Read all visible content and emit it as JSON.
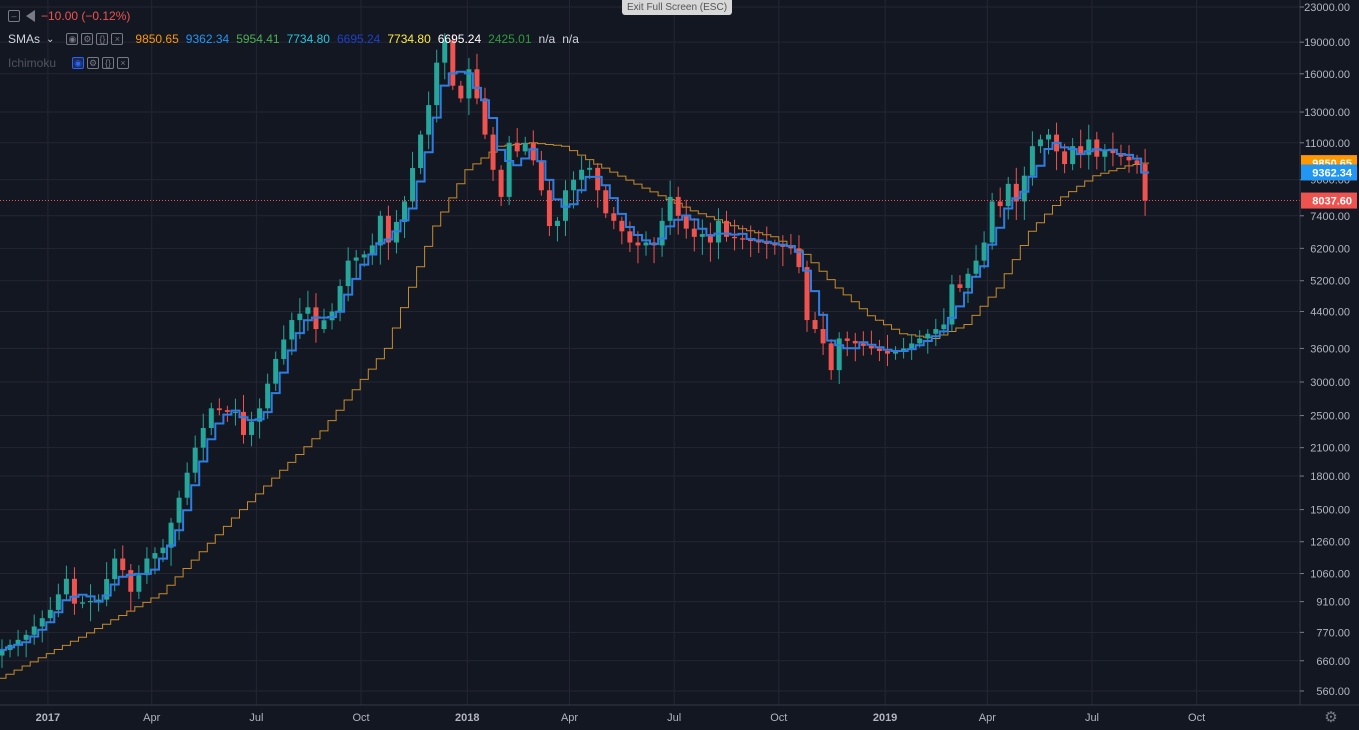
{
  "header": {
    "change_text": "−10.00 (−0.12%)",
    "exit_fullscreen_label": "Exit Full Screen (ESC)"
  },
  "legend": {
    "smas_label": "SMAs",
    "smas_values": [
      {
        "text": "9850.65",
        "color": "#ff9800"
      },
      {
        "text": "9362.34",
        "color": "#2196f3"
      },
      {
        "text": "5954.41",
        "color": "#4caf50"
      },
      {
        "text": "7734.80",
        "color": "#26c6da"
      },
      {
        "text": "6695.24",
        "color": "#1e40c8"
      },
      {
        "text": "7734.80",
        "color": "#ffeb3b"
      },
      {
        "text": "6695.24",
        "color": "#ffffff"
      },
      {
        "text": "2425.01",
        "color": "#2e9d3a"
      },
      {
        "text": "n/a",
        "color": "#d1d4dc"
      },
      {
        "text": "n/a",
        "color": "#d1d4dc"
      }
    ],
    "ichimoku_label": "Ichimoku"
  },
  "chart_data": {
    "type": "candlestick",
    "interval": "weekly",
    "scale": "log",
    "grid": true,
    "x_tick_labels": [
      "2017",
      "Apr",
      "Jul",
      "Oct",
      "2018",
      "Apr",
      "Jul",
      "Oct",
      "2019",
      "Apr",
      "Jul",
      "Oct"
    ],
    "y_tick_labels": [
      "23000.00",
      "19000.00",
      "16000.00",
      "13000.00",
      "11000.00",
      "9000.00",
      "7400.00",
      "6200.00",
      "5200.00",
      "4400.00",
      "3600.00",
      "3000.00",
      "2500.00",
      "2100.00",
      "1800.00",
      "1500.00",
      "1260.00",
      "1060.00",
      "910.00",
      "770.00",
      "660.00",
      "560.00"
    ],
    "ylim": [
      530,
      23500
    ],
    "price_badges": [
      {
        "text": "9850.65",
        "value": 9850.65,
        "color": "#ff9800"
      },
      {
        "text": "9362.34",
        "value": 9362.34,
        "color": "#2196f3"
      },
      {
        "text": "8037.60",
        "value": 8037.6,
        "color": "#ef5350"
      }
    ],
    "current_price_line": 8037.6,
    "colors": {
      "up": "#26a69a",
      "down": "#ef5350",
      "sma_fast": "#2f7de1",
      "sma_slow": "#c58b2b"
    },
    "close_path": [
      [
        0,
        700
      ],
      [
        3,
        760
      ],
      [
        6,
        870
      ],
      [
        8,
        1030
      ],
      [
        9,
        900
      ],
      [
        12,
        920
      ],
      [
        14,
        1150
      ],
      [
        15,
        1080
      ],
      [
        16,
        960
      ],
      [
        18,
        1150
      ],
      [
        20,
        1220
      ],
      [
        22,
        1600
      ],
      [
        24,
        2100
      ],
      [
        26,
        2600
      ],
      [
        28,
        2550
      ],
      [
        29,
        2550
      ],
      [
        30,
        2250
      ],
      [
        32,
        2600
      ],
      [
        34,
        3400
      ],
      [
        36,
        4200
      ],
      [
        38,
        4500
      ],
      [
        39,
        4000
      ],
      [
        41,
        4400
      ],
      [
        43,
        5800
      ],
      [
        45,
        6000
      ],
      [
        46,
        6300
      ],
      [
        47,
        7400
      ],
      [
        48,
        6400
      ],
      [
        50,
        8000
      ],
      [
        52,
        11500
      ],
      [
        53,
        13500
      ],
      [
        54,
        17000
      ],
      [
        55,
        19200
      ],
      [
        56,
        15000
      ],
      [
        57,
        14000
      ],
      [
        58,
        16400
      ],
      [
        59,
        14000
      ],
      [
        60,
        11500
      ],
      [
        61,
        9500
      ],
      [
        62,
        8200
      ],
      [
        63,
        11000
      ],
      [
        64,
        10500
      ],
      [
        65,
        11000
      ],
      [
        66,
        10000
      ],
      [
        67,
        8500
      ],
      [
        68,
        7000
      ],
      [
        69,
        7200
      ],
      [
        70,
        8500
      ],
      [
        71,
        9000
      ],
      [
        72,
        9500
      ],
      [
        73,
        9600
      ],
      [
        74,
        8500
      ],
      [
        75,
        7500
      ],
      [
        76,
        7200
      ],
      [
        77,
        6800
      ],
      [
        78,
        6400
      ],
      [
        79,
        6300
      ],
      [
        80,
        6400
      ],
      [
        81,
        6300
      ],
      [
        82,
        7200
      ],
      [
        83,
        8200
      ],
      [
        84,
        7400
      ],
      [
        85,
        6900
      ],
      [
        86,
        6600
      ],
      [
        87,
        6700
      ],
      [
        88,
        6400
      ],
      [
        89,
        7200
      ],
      [
        90,
        6600
      ],
      [
        92,
        6500
      ],
      [
        94,
        6400
      ],
      [
        96,
        6300
      ],
      [
        98,
        6200
      ],
      [
        99,
        5600
      ],
      [
        100,
        4200
      ],
      [
        101,
        4000
      ],
      [
        102,
        3700
      ],
      [
        103,
        3200
      ],
      [
        104,
        3800
      ],
      [
        106,
        3700
      ],
      [
        108,
        3600
      ],
      [
        110,
        3500
      ],
      [
        112,
        3600
      ],
      [
        114,
        3800
      ],
      [
        116,
        4000
      ],
      [
        117,
        4100
      ],
      [
        118,
        5100
      ],
      [
        119,
        5000
      ],
      [
        120,
        5400
      ],
      [
        121,
        5800
      ],
      [
        122,
        6400
      ],
      [
        123,
        8000
      ],
      [
        124,
        7800
      ],
      [
        125,
        8800
      ],
      [
        126,
        8000
      ],
      [
        127,
        9200
      ],
      [
        128,
        10800
      ],
      [
        129,
        11200
      ],
      [
        130,
        11500
      ],
      [
        131,
        10500
      ],
      [
        132,
        9800
      ],
      [
        133,
        10800
      ],
      [
        134,
        10300
      ],
      [
        135,
        11200
      ],
      [
        136,
        10200
      ],
      [
        137,
        10600
      ],
      [
        138,
        10400
      ],
      [
        139,
        10200
      ],
      [
        140,
        10000
      ],
      [
        141,
        9800
      ],
      [
        142,
        8037.6
      ]
    ],
    "sma_slow_values": [
      [
        0,
        600
      ],
      [
        10,
        750
      ],
      [
        20,
        950
      ],
      [
        30,
        1500
      ],
      [
        40,
        2300
      ],
      [
        48,
        3600
      ],
      [
        54,
        7000
      ],
      [
        58,
        9500
      ],
      [
        62,
        10800
      ],
      [
        66,
        11000
      ],
      [
        70,
        10800
      ],
      [
        74,
        9800
      ],
      [
        80,
        8600
      ],
      [
        86,
        7600
      ],
      [
        92,
        6900
      ],
      [
        96,
        6600
      ],
      [
        100,
        6000
      ],
      [
        104,
        5000
      ],
      [
        108,
        4300
      ],
      [
        112,
        3900
      ],
      [
        116,
        3800
      ],
      [
        120,
        4100
      ],
      [
        124,
        5000
      ],
      [
        128,
        6800
      ],
      [
        132,
        8200
      ],
      [
        136,
        9200
      ],
      [
        140,
        9700
      ],
      [
        142,
        9850
      ]
    ]
  }
}
